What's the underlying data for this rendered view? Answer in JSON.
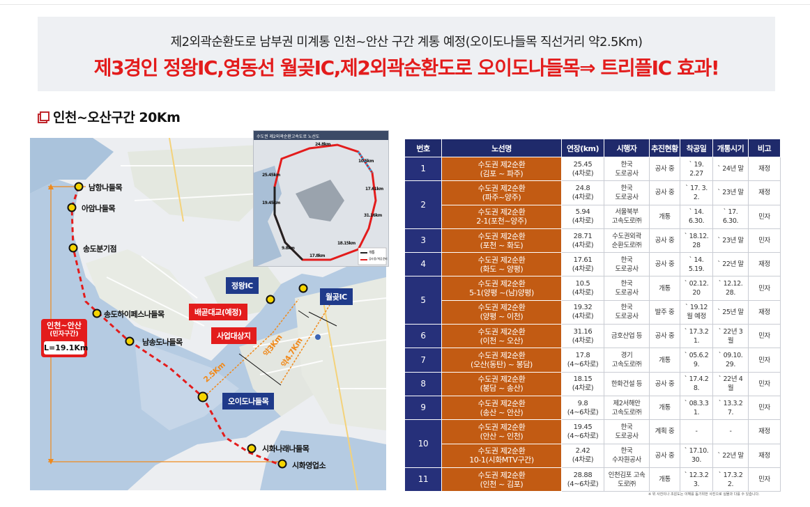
{
  "header": {
    "subtitle": "제2외곽순환도로 남부권 미계통 인천~안산 구간  계통 예정(오이도나들목 직선거리 약2.5Km)",
    "headline": "제3경인 정왕IC,영동선 월곶IC,제2외곽순환도로 오이도나들목⇒ 트리플IC 효과!"
  },
  "section": {
    "title": "인천~오산구간 20Km"
  },
  "map": {
    "colors": {
      "route": "#e31c1c",
      "accent": "#1f3a8a",
      "distance": "#f08a1c"
    },
    "interchanges": [
      "남항나들목",
      "아암나들목",
      "송도분기점",
      "송도하이페스나들목",
      "남송도나들목",
      "오이도나들목",
      "시화나래나들목",
      "시화영업소"
    ],
    "tags": {
      "jeongwang": "정왕IC",
      "wolgot": "월곶IC",
      "bridge": "배곧대교(예정)",
      "site": "사업대상지",
      "oido": "오이도나들목"
    },
    "distances": [
      "2.5Km",
      "약3Km",
      "약4.7Km"
    ],
    "section_box": {
      "line1": "인천~안산",
      "line2": "(민자구간)",
      "line3": "L=19.1Km"
    },
    "inset": {
      "caption": "수도권 제2외곽순환고속도로 노선도",
      "segments": [
        "24.8km",
        "25.45km",
        "19.45km",
        "10.5km",
        "17.61km",
        "31.16km",
        "18.15km",
        "17.8km",
        "9.8km"
      ],
      "legend": [
        "개통",
        "공사 중 / 착공 준비"
      ]
    }
  },
  "table": {
    "headers": [
      "번호",
      "노선명",
      "연장(km)",
      "시행자",
      "추진현황",
      "착공일",
      "개통시기",
      "비고"
    ],
    "rows": [
      {
        "no": "1",
        "name": [
          "수도권 제2순환",
          "(김포 ~ 파주)"
        ],
        "length": [
          "25.45",
          "(4차로)"
        ],
        "operator": [
          "한국",
          "도로공사"
        ],
        "status": "공사 중",
        "start": [
          "` 19.",
          "2.27"
        ],
        "open": "` 24년 말",
        "note": "재정"
      },
      {
        "no": "2",
        "name": [
          "수도권 제2순환",
          "(파주~양주)"
        ],
        "length": [
          "24.8",
          "(4차로)"
        ],
        "operator": [
          "한국",
          "도로공사"
        ],
        "status": "공사 중",
        "start": [
          "` 17. 3.",
          "2."
        ],
        "open": "` 23년 말",
        "note": "재정"
      },
      {
        "name": [
          "수도권 제2순환",
          "2-1(포천~양주)"
        ],
        "length": [
          "5.94",
          "(4차로)"
        ],
        "operator": [
          "서울북부",
          "고속도로㈜"
        ],
        "status": "개통",
        "start": [
          "` 14.",
          "6.30."
        ],
        "open": "` 17.\n6.30.",
        "note": "민자"
      },
      {
        "no": "3",
        "name": [
          "수도권 제2순환",
          "(포천 ~ 화도)"
        ],
        "length": [
          "28.71",
          "(4차로)"
        ],
        "operator": [
          "수도권외곽",
          "순환도로㈜"
        ],
        "status": "공사 중",
        "start": [
          "` 18.12.",
          "28"
        ],
        "open": "` 23년 말",
        "note": "민자"
      },
      {
        "no": "4",
        "name": [
          "수도권 제2순환",
          "(화도 ~ 양평)"
        ],
        "length": [
          "17.61",
          "(4차로)"
        ],
        "operator": [
          "한국",
          "도로공사"
        ],
        "status": "공사 중",
        "start": [
          "` 14.",
          "5.19."
        ],
        "open": "` 22년 말",
        "note": "재정"
      },
      {
        "no": "5",
        "name": [
          "수도권 제2순환",
          "5-1(양평 ~(남)양평)"
        ],
        "length": [
          "10.5",
          "(4차로)"
        ],
        "operator": [
          "한국",
          "도로공사"
        ],
        "status": "개통",
        "start": [
          "` 02.12.",
          "20"
        ],
        "open": "` 12.12.\n28.",
        "note": "민자"
      },
      {
        "name": [
          "수도권 제2순환",
          "(양평 ~ 이천)"
        ],
        "length": [
          "19.32",
          "(4차로)"
        ],
        "operator": [
          "한국",
          "도로공사"
        ],
        "status": "발주 중",
        "start": [
          "` 19.12",
          "월 예정"
        ],
        "open": "` 25년 말",
        "note": "재정"
      },
      {
        "no": "6",
        "name": [
          "수도권 제2순환",
          "(이천 ~ 오산)"
        ],
        "length": [
          "31.16",
          "(4차로)"
        ],
        "operator": [
          "금호산업 등"
        ],
        "status": "공사 중",
        "start": [
          "` 17.3.2",
          "1."
        ],
        "open": "` 22년 3\n월",
        "note": "민자"
      },
      {
        "no": "7",
        "name": [
          "수도권 제2순환",
          "(오산(동탄) ~ 봉담)"
        ],
        "length": [
          "17.8",
          "(4~6차로)"
        ],
        "operator": [
          "경기",
          "고속도로㈜"
        ],
        "status": "개통",
        "start": [
          "` 05.6.2",
          "9."
        ],
        "open": "` 09.10.\n29.",
        "note": "민자"
      },
      {
        "no": "8",
        "name": [
          "수도권 제2순환",
          "(봉담 ~ 송산)"
        ],
        "length": [
          "18.15",
          "(4차로)"
        ],
        "operator": [
          "한화건설 등"
        ],
        "status": "공사 중",
        "start": [
          "` 17.4.2",
          "8."
        ],
        "open": "` 22년 4\n월",
        "note": "민자"
      },
      {
        "no": "9",
        "name": [
          "수도권 제2순환",
          "(송산 ~ 안산)"
        ],
        "length": [
          "9.8",
          "(4~6차로)"
        ],
        "operator": [
          "제2서해안",
          "고속도로㈜"
        ],
        "status": "개통",
        "start": [
          "` 08.3.3",
          "1."
        ],
        "open": "` 13.3.2\n7.",
        "note": "민자"
      },
      {
        "no": "10",
        "name": [
          "수도권 제2순환",
          "(안산 ~ 인천)"
        ],
        "length": [
          "19.45",
          "(4~6차로)"
        ],
        "operator": [
          "한국",
          "도로공사"
        ],
        "status": "계획 중",
        "start": [
          "-",
          ""
        ],
        "open": "-",
        "note": "재정"
      },
      {
        "name": [
          "수도권 제2순환",
          "10-1(시화MTV구간)"
        ],
        "length": [
          "2.42",
          "(4차로)"
        ],
        "operator": [
          "한국",
          "수자원공사"
        ],
        "status": "공사 중",
        "start": [
          "` 17.10.",
          "30."
        ],
        "open": "` 22년 말",
        "note": "재정"
      },
      {
        "no": "11",
        "name": [
          "수도권 제2순환",
          "(인천 ~ 김포)"
        ],
        "length": [
          "28.88",
          "(4~6차로)"
        ],
        "operator": [
          "인천김포 고속",
          "도로㈜"
        ],
        "status": "개통",
        "start": [
          "` 12.3.2",
          "3."
        ],
        "open": "` 17.3.2\n2.",
        "note": "민자"
      }
    ],
    "footnote": "※ 위 사진이나 조감도는 이해를 돕기위한 사진으로 실물과 다를 수 있습니다."
  }
}
